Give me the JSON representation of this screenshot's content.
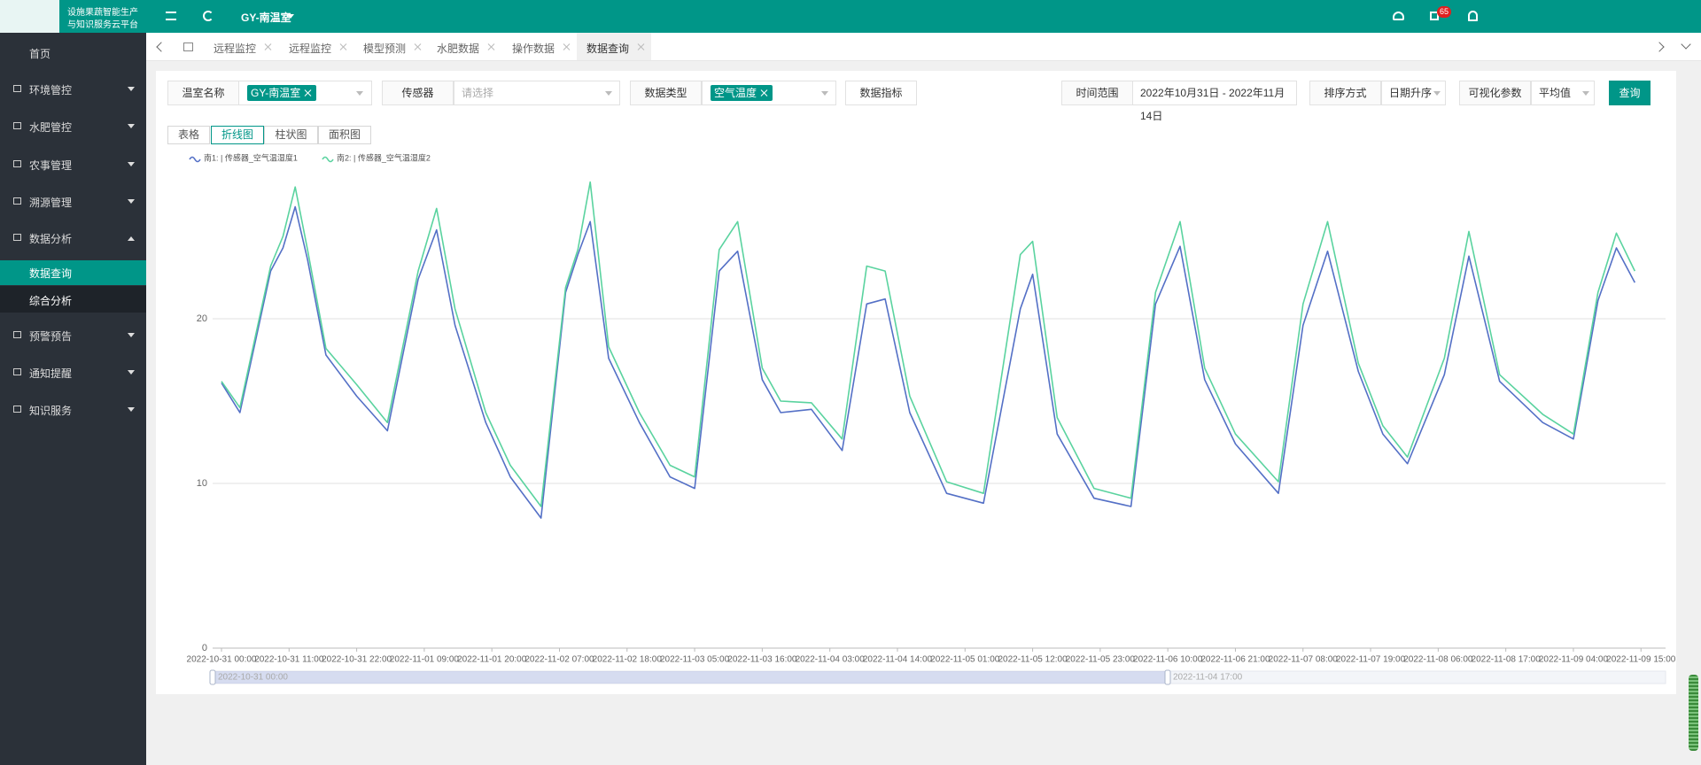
{
  "header": {
    "logo_line1": "设施果蔬智能生产",
    "logo_line2": "与知识服务云平台",
    "greenhouse": "GY-南温室",
    "badge": "65"
  },
  "sidebar": {
    "items": [
      "首页",
      "环境管控",
      "水肥管控",
      "农事管理",
      "溯源管理",
      "数据分析",
      "预警预告",
      "通知提醒",
      "知识服务"
    ],
    "sub": [
      "数据查询",
      "综合分析"
    ]
  },
  "tabs": [
    "远程监控",
    "远程监控",
    "模型预测",
    "水肥数据",
    "操作数据",
    "数据查询"
  ],
  "filters": {
    "greenhouse_label": "温室名称",
    "greenhouse_tag": "GY-南温室",
    "sensor_label": "传感器",
    "sensor_placeholder": "请选择",
    "type_label": "数据类型",
    "type_tag": "空气温度",
    "metric_button": "数据指标",
    "time_label": "时间范围",
    "time_value": "2022年10月31日 - 2022年11月14日",
    "sort_label": "排序方式",
    "sort_value": "日期升序",
    "vis_label": "可视化参数",
    "vis_value": "平均值",
    "query_button": "查询"
  },
  "view_buttons": [
    "表格",
    "折线图",
    "柱状图",
    "面积图"
  ],
  "zoom": {
    "start": "2022-10-31 00:00",
    "end": "2022-11-04 17:00"
  },
  "chart_data": {
    "type": "line",
    "x": [
      "2022-10-31 00:00",
      "2022-10-31 03:00",
      "2022-10-31 08:00",
      "2022-10-31 10:00",
      "2022-10-31 12:00",
      "2022-10-31 14:00",
      "2022-10-31 17:00",
      "2022-10-31 22:00",
      "2022-11-01 03:00",
      "2022-11-01 08:00",
      "2022-11-01 11:00",
      "2022-11-01 14:00",
      "2022-11-01 19:00",
      "2022-11-01 23:00",
      "2022-11-02 04:00",
      "2022-11-02 08:00",
      "2022-11-02 10:00",
      "2022-11-02 12:00",
      "2022-11-02 15:00",
      "2022-11-02 20:00",
      "2022-11-03 01:00",
      "2022-11-03 05:00",
      "2022-11-03 09:00",
      "2022-11-03 12:00",
      "2022-11-03 16:00",
      "2022-11-03 19:00",
      "2022-11-04 00:00",
      "2022-11-04 05:00",
      "2022-11-04 09:00",
      "2022-11-04 12:00",
      "2022-11-04 16:00",
      "2022-11-04 22:00",
      "2022-11-05 04:00",
      "2022-11-05 10:00",
      "2022-11-05 12:00",
      "2022-11-05 16:00",
      "2022-11-05 22:00",
      "2022-11-06 04:00",
      "2022-11-06 08:00",
      "2022-11-06 12:00",
      "2022-11-06 16:00",
      "2022-11-06 21:00",
      "2022-11-07 04:00",
      "2022-11-07 08:00",
      "2022-11-07 12:00",
      "2022-11-07 17:00",
      "2022-11-07 21:00",
      "2022-11-08 01:00",
      "2022-11-08 07:00",
      "2022-11-08 11:00",
      "2022-11-08 16:00",
      "2022-11-08 23:00",
      "2022-11-09 04:00",
      "2022-11-09 08:00",
      "2022-11-09 11:00",
      "2022-11-09 14:00"
    ],
    "series": [
      {
        "name": "南1: | 传感器_空气温湿度1",
        "color": "#5470c6",
        "values": [
          16.1,
          14.3,
          22.9,
          24.3,
          26.8,
          23.6,
          17.8,
          15.3,
          13.2,
          22.4,
          25.4,
          19.6,
          13.7,
          10.4,
          7.9,
          21.6,
          23.9,
          25.9,
          17.6,
          13.7,
          10.4,
          9.7,
          22.9,
          24.1,
          16.3,
          14.3,
          14.5,
          12,
          20.9,
          21.2,
          14.3,
          9.4,
          8.8,
          20.6,
          22.7,
          13,
          9.1,
          8.6,
          20.9,
          24.4,
          16.3,
          12.4,
          9.4,
          19.6,
          24.1,
          16.8,
          13,
          11.2,
          16.6,
          23.8,
          16.2,
          13.7,
          12.7,
          21.1,
          24.3,
          22.2
        ]
      },
      {
        "name": "南2: | 传感器_空气温湿度2",
        "color": "#5ad39f",
        "values": [
          16.2,
          14.6,
          23.2,
          25,
          28,
          24.2,
          18.2,
          16,
          13.7,
          22.9,
          26.7,
          20.6,
          14.3,
          11.1,
          8.6,
          21.9,
          24.2,
          28.3,
          18.3,
          14.3,
          11.1,
          10.4,
          24.2,
          25.9,
          17,
          15,
          14.9,
          12.7,
          23.2,
          22.9,
          15.3,
          10.1,
          9.4,
          23.9,
          24.7,
          14,
          9.7,
          9.1,
          21.6,
          25.9,
          17,
          13,
          10.1,
          20.9,
          25.9,
          17.3,
          13.5,
          11.6,
          17.6,
          25.3,
          16.6,
          14.2,
          13,
          21.6,
          25.2,
          22.9
        ]
      }
    ],
    "xlim": [
      "2022-10-31 00:00",
      "2022-11-09 19:00"
    ],
    "xticks": [
      "2022-10-31 00:00",
      "2022-10-31 11:00",
      "2022-10-31 22:00",
      "2022-11-01 09:00",
      "2022-11-01 20:00",
      "2022-11-02 07:00",
      "2022-11-02 18:00",
      "2022-11-03 05:00",
      "2022-11-03 16:00",
      "2022-11-04 03:00",
      "2022-11-04 14:00",
      "2022-11-05 01:00",
      "2022-11-05 12:00",
      "2022-11-05 23:00",
      "2022-11-06 10:00",
      "2022-11-06 21:00",
      "2022-11-07 08:00",
      "2022-11-07 19:00",
      "2022-11-08 06:00",
      "2022-11-08 17:00",
      "2022-11-09 04:00",
      "2022-11-09 15:00"
    ],
    "ylim": [
      0,
      30
    ],
    "yticks": [
      0,
      10,
      20
    ],
    "grid": true
  }
}
